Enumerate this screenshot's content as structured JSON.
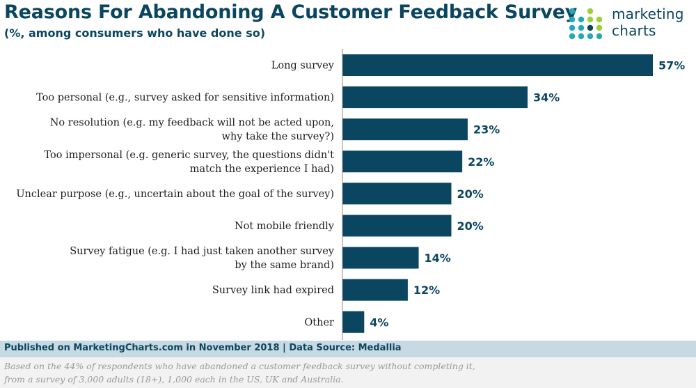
{
  "header": {
    "title": "Reasons For Abandoning A Customer Feedback Survey",
    "subtitle": "(%, among consumers who have done so)"
  },
  "logo": {
    "line1": "marketing",
    "line2": "charts",
    "icon": "dot-grid-logo-icon",
    "colors": [
      "#22a9b8",
      "#9ccf3a",
      "#0b4660"
    ]
  },
  "chart_data": {
    "type": "bar",
    "orientation": "horizontal",
    "categories": [
      [
        "Long survey"
      ],
      [
        "Too personal (e.g., survey asked for sensitive information)"
      ],
      [
        "No resolution (e.g. my feedback will not be acted upon,",
        "why take the survey?)"
      ],
      [
        "Too impersonal (e.g. generic survey, the questions didn't",
        "match the experience I had)"
      ],
      [
        "Unclear purpose (e.g., uncertain about the goal of the survey)"
      ],
      [
        "Not mobile friendly"
      ],
      [
        "Survey fatigue (e.g. I had just taken another survey",
        "by the same brand)"
      ],
      [
        "Survey link had expired"
      ],
      [
        "Other"
      ]
    ],
    "values": [
      57,
      34,
      23,
      22,
      20,
      20,
      14,
      12,
      4
    ],
    "value_labels": [
      "57%",
      "34%",
      "23%",
      "22%",
      "20%",
      "20%",
      "14%",
      "12%",
      "4%"
    ],
    "unit": "%",
    "xlim": [
      0,
      57
    ],
    "bar_color": "#0b4660",
    "grid": false
  },
  "footer": {
    "source": "Published on MarketingCharts.com in November 2018 | Data Source: Medallia",
    "note_line1": "Based on the 44% of respondents who have abandoned a customer feedback survey without completing it,",
    "note_line2": "from a survey of 3,000 adults (18+), 1,000 each in the US, UK and Australia."
  }
}
